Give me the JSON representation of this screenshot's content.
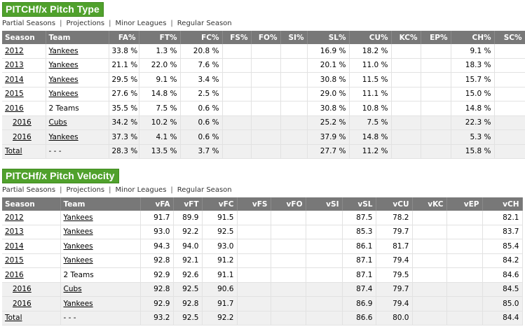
{
  "sections": [
    {
      "title": "PITCHf/x Pitch Type",
      "links": [
        "Partial Seasons",
        "Projections",
        "Minor Leagues",
        "Regular Season"
      ],
      "columns": [
        "Season",
        "Team",
        "FA%",
        "FT%",
        "FC%",
        "FS%",
        "FO%",
        "SI%",
        "SL%",
        "CU%",
        "KC%",
        "EP%",
        "CH%",
        "SC%"
      ],
      "rows": [
        [
          "2012",
          "Yankees",
          "33.8 %",
          "1.3 %",
          "20.8 %",
          null,
          null,
          null,
          "16.9 %",
          "18.2 %",
          null,
          null,
          "9.1 %",
          null
        ],
        [
          "2013",
          "Yankees",
          "21.1 %",
          "22.0 %",
          "7.6 %",
          null,
          null,
          null,
          "20.1 %",
          "11.0 %",
          null,
          null,
          "18.3 %",
          null
        ],
        [
          "2014",
          "Yankees",
          "29.5 %",
          "9.1 %",
          "3.4 %",
          null,
          null,
          null,
          "30.8 %",
          "11.5 %",
          null,
          null,
          "15.7 %",
          null
        ],
        [
          "2015",
          "Yankees",
          "27.6 %",
          "14.8 %",
          "2.5 %",
          null,
          null,
          null,
          "29.0 %",
          "11.1 %",
          null,
          null,
          "15.0 %",
          null
        ],
        [
          "2016",
          "2 Teams",
          "35.5 %",
          "7.5 %",
          "0.6 %",
          null,
          null,
          null,
          "30.8 %",
          "10.8 %",
          null,
          null,
          "14.8 %",
          null
        ],
        [
          "2016",
          "Cubs",
          "34.2 %",
          "10.2 %",
          "0.6 %",
          null,
          null,
          null,
          "25.2 %",
          "7.5 %",
          null,
          null,
          "22.3 %",
          null
        ],
        [
          "2016",
          "Yankees",
          "37.3 %",
          "4.1 %",
          "0.6 %",
          null,
          null,
          null,
          "37.9 %",
          "14.8 %",
          null,
          null,
          "5.3 %",
          null
        ],
        [
          "Total",
          "- - -",
          "28.3 %",
          "13.5 %",
          "3.7 %",
          null,
          null,
          null,
          "27.7 %",
          "11.2 %",
          null,
          null,
          "15.8 %",
          null
        ]
      ]
    },
    {
      "title": "PITCHf/x Pitch Velocity",
      "links": [
        "Partial Seasons",
        "Projections",
        "Minor Leagues",
        "Regular Season"
      ],
      "columns": [
        "Season",
        "Team",
        "vFA",
        "vFT",
        "vFC",
        "vFS",
        "vFO",
        "vSI",
        "vSL",
        "vCU",
        "vKC",
        "vEP",
        "vCH"
      ],
      "rows": [
        [
          "2012",
          "Yankees",
          "91.7",
          "89.9",
          "91.5",
          null,
          null,
          null,
          "87.5",
          "78.2",
          null,
          null,
          "82.1"
        ],
        [
          "2013",
          "Yankees",
          "93.0",
          "92.2",
          "92.5",
          null,
          null,
          null,
          "85.3",
          "79.7",
          null,
          null,
          "83.7"
        ],
        [
          "2014",
          "Yankees",
          "94.3",
          "94.0",
          "93.0",
          null,
          null,
          null,
          "86.1",
          "81.7",
          null,
          null,
          "85.4"
        ],
        [
          "2015",
          "Yankees",
          "92.8",
          "92.1",
          "91.2",
          null,
          null,
          null,
          "87.1",
          "79.4",
          null,
          null,
          "84.2"
        ],
        [
          "2016",
          "2 Teams",
          "92.9",
          "92.6",
          "91.1",
          null,
          null,
          null,
          "87.1",
          "79.5",
          null,
          null,
          "84.6"
        ],
        [
          "2016",
          "Cubs",
          "92.8",
          "92.5",
          "90.6",
          null,
          null,
          null,
          "87.4",
          "79.7",
          null,
          null,
          "84.5"
        ],
        [
          "2016",
          "Yankees",
          "92.9",
          "92.8",
          "91.7",
          null,
          null,
          null,
          "86.9",
          "79.4",
          null,
          null,
          "85.0"
        ],
        [
          "Total",
          "- - -",
          "93.2",
          "92.5",
          "92.2",
          null,
          null,
          null,
          "86.6",
          "80.0",
          null,
          null,
          "84.4"
        ]
      ]
    }
  ]
}
